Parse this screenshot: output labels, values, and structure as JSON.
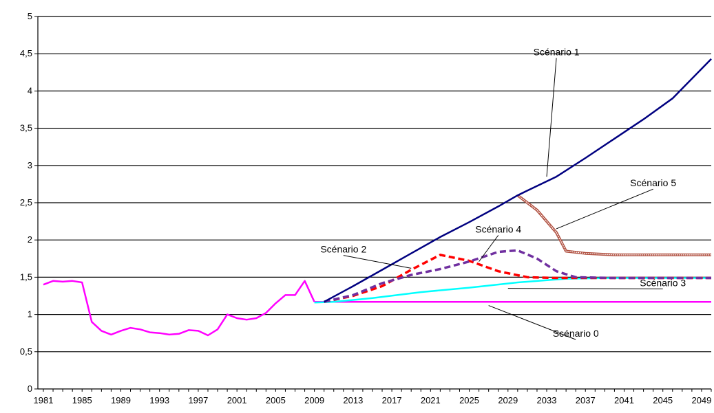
{
  "chart_data": {
    "type": "line",
    "title": "",
    "xlabel": "",
    "ylabel": "",
    "xlim": [
      1981,
      2050
    ],
    "ylim": [
      0,
      5
    ],
    "grid": "horizontal",
    "legend": "none",
    "y_ticks": [
      "0",
      "0,5",
      "1",
      "1,5",
      "2",
      "2,5",
      "3",
      "3,5",
      "4",
      "4,5",
      "5"
    ],
    "y_tick_values": [
      0,
      0.5,
      1,
      1.5,
      2,
      2.5,
      3,
      3.5,
      4,
      4.5,
      5
    ],
    "x_ticks": [
      "1981",
      "1985",
      "1989",
      "1993",
      "1997",
      "2001",
      "2005",
      "2009",
      "2013",
      "2017",
      "2021",
      "2025",
      "2029",
      "2033",
      "2037",
      "2041",
      "2045",
      "2049"
    ],
    "x_tick_values": [
      1981,
      1985,
      1989,
      1993,
      1997,
      2001,
      2005,
      2009,
      2013,
      2017,
      2021,
      2025,
      2029,
      2033,
      2037,
      2041,
      2045,
      2049
    ],
    "series": [
      {
        "name": "",
        "color": "#ff00ff",
        "style": "solid",
        "x": [
          1981,
          1982,
          1983,
          1984,
          1985,
          1986,
          1987,
          1988,
          1989,
          1990,
          1991,
          1992,
          1993,
          1994,
          1995,
          1996,
          1997,
          1998,
          1999,
          2000,
          2001,
          2002,
          2003,
          2004,
          2005,
          2006,
          2007,
          2008,
          2009
        ],
        "values": [
          1.4,
          1.45,
          1.44,
          1.45,
          1.43,
          0.9,
          0.78,
          0.73,
          0.78,
          0.82,
          0.8,
          0.76,
          0.75,
          0.73,
          0.74,
          0.79,
          0.78,
          0.72,
          0.8,
          1.0,
          0.95,
          0.93,
          0.95,
          1.02,
          1.15,
          1.26,
          1.26,
          1.45,
          1.17
        ]
      },
      {
        "name": "Scénario 0",
        "color": "#ff00ff",
        "style": "solid",
        "x": [
          2009,
          2050
        ],
        "values": [
          1.17,
          1.17
        ]
      },
      {
        "name": "Scénario 3",
        "color": "#00ffff",
        "style": "solid",
        "x": [
          2009,
          2011,
          2015,
          2020,
          2025,
          2030,
          2035,
          2040,
          2050
        ],
        "values": [
          1.16,
          1.17,
          1.22,
          1.3,
          1.36,
          1.43,
          1.48,
          1.49,
          1.49
        ]
      },
      {
        "name": "Scénario 2",
        "color": "#ff0000",
        "style": "dashed",
        "x": [
          2010,
          2013,
          2016,
          2019,
          2022,
          2025,
          2028,
          2031,
          2034,
          2037,
          2040,
          2050
        ],
        "values": [
          1.17,
          1.25,
          1.38,
          1.6,
          1.8,
          1.72,
          1.58,
          1.5,
          1.49,
          1.49,
          1.49,
          1.49
        ]
      },
      {
        "name": "Scénario 4",
        "color": "#7030a0",
        "style": "dashed",
        "x": [
          2010,
          2013,
          2016,
          2019,
          2022,
          2025,
          2028,
          2030,
          2032,
          2034,
          2036,
          2040,
          2050
        ],
        "values": [
          1.17,
          1.26,
          1.42,
          1.53,
          1.61,
          1.71,
          1.84,
          1.86,
          1.75,
          1.58,
          1.5,
          1.49,
          1.49
        ]
      },
      {
        "name": "Scénario 5",
        "color": "#b05040",
        "style": "double",
        "x": [
          2030,
          2032,
          2034,
          2035,
          2037,
          2040,
          2045,
          2050
        ],
        "values": [
          2.6,
          2.4,
          2.1,
          1.85,
          1.82,
          1.8,
          1.8,
          1.8
        ]
      },
      {
        "name": "Scénario 1",
        "color": "#000080",
        "style": "solid",
        "x": [
          2010,
          2013,
          2016,
          2019,
          2022,
          2025,
          2028,
          2030,
          2034,
          2037,
          2040,
          2043,
          2046,
          2050
        ],
        "values": [
          1.17,
          1.38,
          1.6,
          1.82,
          2.04,
          2.24,
          2.45,
          2.6,
          2.85,
          3.1,
          3.36,
          3.62,
          3.9,
          4.43
        ]
      }
    ],
    "annotations": [
      {
        "text": "Scénario 1",
        "anchor_x": 2033.0,
        "anchor_y": 2.85,
        "label_x": 2034.0,
        "label_y": 4.48
      },
      {
        "text": "Scénario 5",
        "anchor_x": 2034.0,
        "anchor_y": 2.15,
        "label_x": 2044.0,
        "label_y": 2.72
      },
      {
        "text": "Scénario 4",
        "anchor_x": 2026.0,
        "anchor_y": 1.71,
        "label_x": 2028.0,
        "label_y": 2.1
      },
      {
        "text": "Scénario 2",
        "anchor_x": 2019.0,
        "anchor_y": 1.62,
        "label_x": 2012.0,
        "label_y": 1.83
      },
      {
        "text": "Scénario 3",
        "anchor_x": 2029.0,
        "anchor_y": 1.35,
        "label_x": 2045.0,
        "label_y": 1.38
      },
      {
        "text": "Scénario 0",
        "anchor_x": 2027.0,
        "anchor_y": 1.12,
        "label_x": 2036.0,
        "label_y": 0.7
      }
    ]
  }
}
